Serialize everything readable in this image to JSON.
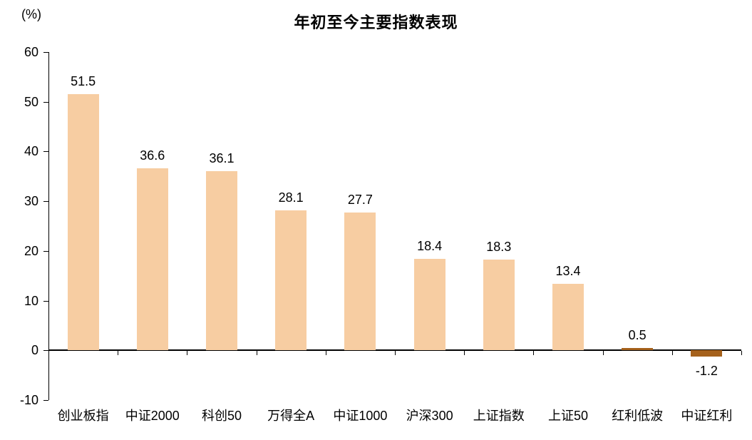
{
  "chart": {
    "title": "年初至今主要指数表现",
    "unit_label": "(%)"
  },
  "chart_data": {
    "type": "bar",
    "title": "年初至今主要指数表现",
    "ylabel": "(%)",
    "xlabel": "",
    "categories": [
      "创业板指",
      "中证2000",
      "科创50",
      "万得全A",
      "中证1000",
      "沪深300",
      "上证指数",
      "上证50",
      "红利低波",
      "中证红利"
    ],
    "values": [
      51.5,
      36.6,
      36.1,
      28.1,
      27.7,
      18.4,
      18.3,
      13.4,
      0.5,
      -1.2
    ],
    "value_labels": [
      "51.5",
      "36.6",
      "36.1",
      "28.1",
      "27.7",
      "18.4",
      "18.3",
      "13.4",
      "0.5",
      "-1.2"
    ],
    "ylim": [
      -10,
      60
    ],
    "yticks": [
      60,
      50,
      40,
      30,
      20,
      10,
      0,
      -10
    ],
    "bar_colors": [
      "#F7CDA2",
      "#F7CDA2",
      "#F7CDA2",
      "#F7CDA2",
      "#F7CDA2",
      "#F7CDA2",
      "#F7CDA2",
      "#F7CDA2",
      "#A5611B",
      "#A5611B"
    ],
    "axis_color": "#000000",
    "grid": false,
    "legend": false
  }
}
